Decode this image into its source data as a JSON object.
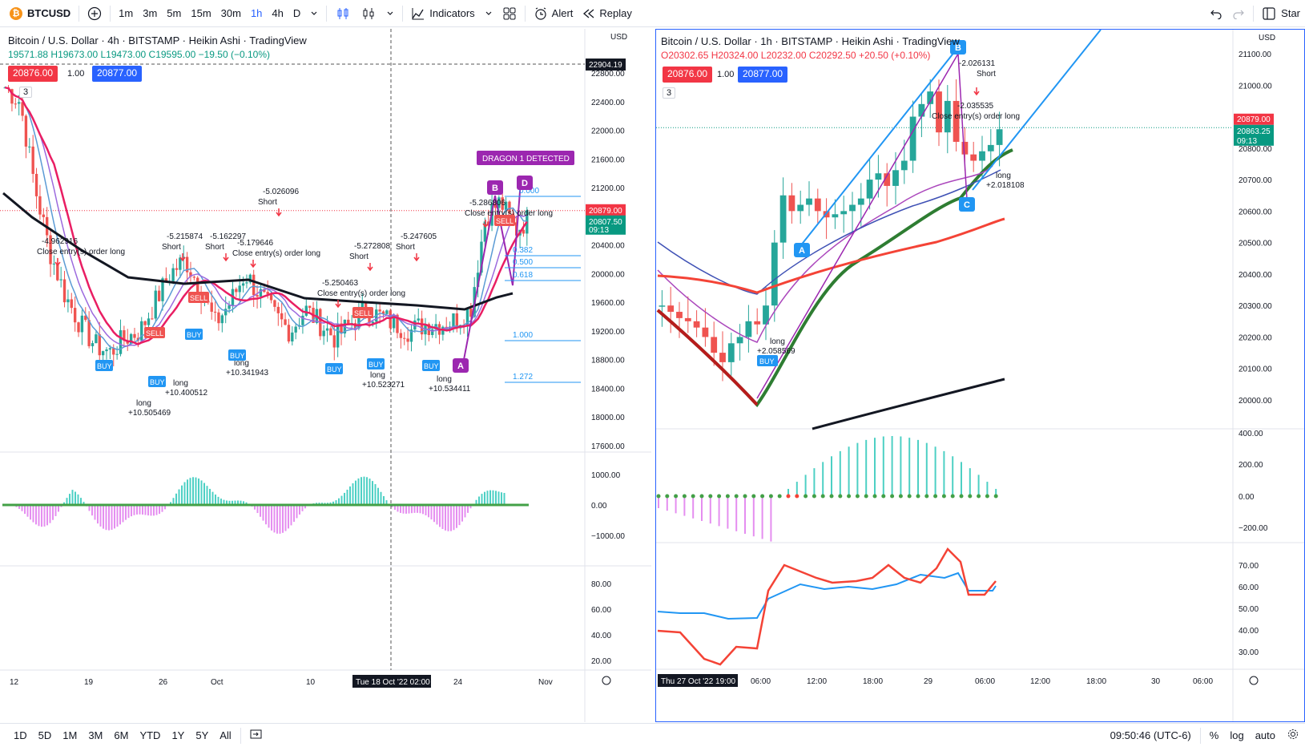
{
  "toolbar": {
    "symbol": "BTCUSD",
    "symbol_badge": "₿",
    "intervals": [
      "1m",
      "3m",
      "5m",
      "15m",
      "30m",
      "1h",
      "4h",
      "D"
    ],
    "active_interval": "1h",
    "indicators_label": "Indicators",
    "alert_label": "Alert",
    "replay_label": "Replay",
    "star_label": "Star"
  },
  "left": {
    "title": "Bitcoin / U.S. Dollar · 4h · BITSTAMP · Heikin Ashi · TradingView",
    "ohlc_o": "19571.88",
    "ohlc_h": "H19673.00",
    "ohlc_l": "L19473.00",
    "ohlc_c": "C19595.00",
    "ohlc_chg": "−19.50 (−0.10%)",
    "bid": "20876.00",
    "qty": "1.00",
    "ask": "20877.00",
    "ind_count": "3",
    "currency": "USD",
    "crosshair_price": "22904.19",
    "current_price": "20879.00",
    "current_price2": "20807.50",
    "countdown": "09:13",
    "date_marker": "Tue 18 Oct '22   02:00",
    "price_ticks": [
      "22800.00",
      "22400.00",
      "22000.00",
      "21600.00",
      "21200.00",
      "20800.00",
      "20400.00",
      "20000.00",
      "19600.00",
      "19200.00",
      "18800.00",
      "18400.00",
      "18000.00",
      "17600.00"
    ],
    "osc_ticks": [
      "1000.00",
      "0.00",
      "−1000.00"
    ],
    "rsi_ticks": [
      "80.00",
      "60.00",
      "40.00",
      "20.00"
    ],
    "x_ticks": [
      "12",
      "19",
      "26",
      "Oct",
      "10",
      "24",
      "Nov"
    ],
    "fib_labels": [
      "0.382",
      "0.500",
      "0.618",
      "1.000",
      "1.272",
      "0.000"
    ],
    "pattern_label": "DRAGON 1 DETECTED",
    "points": [
      "A",
      "B",
      "D"
    ],
    "annotations": [
      {
        "t": "-4.962916",
        "s": "Close entry(s) order long"
      },
      {
        "t": "-5.215874",
        "s": "Short"
      },
      {
        "t": "-5.162297",
        "s": "Short"
      },
      {
        "t": "-5.026096",
        "s": "Short"
      },
      {
        "t": "-5.179646",
        "s": "Close entry(s) order long"
      },
      {
        "t": "-5.272808",
        "s": "Short"
      },
      {
        "t": "-5.247605",
        "s": "Short"
      },
      {
        "t": "-5.250463",
        "s": "Close entry(s) order long"
      },
      {
        "t": "-5.286806",
        "s": "Close entry(s) order long"
      }
    ],
    "long_notes": [
      "long +10.341943",
      "long +10.523271",
      "long +10.534411",
      "long +10.400512",
      "long +10.505469"
    ]
  },
  "right": {
    "title": "Bitcoin / U.S. Dollar · 1h · BITSTAMP · Heikin Ashi · TradingView",
    "ohlc_o": "O20302.65",
    "ohlc_h": "H20324.00",
    "ohlc_l": "L20232.00",
    "ohlc_c": "C20292.50",
    "ohlc_chg": "+20.50 (+0.10%)",
    "bid": "20876.00",
    "qty": "1.00",
    "ask": "20877.00",
    "ind_count": "3",
    "currency": "USD",
    "current_price": "20879.00",
    "current_price2": "20863.25",
    "countdown": "09:13",
    "date_marker": "Thu 27 Oct '22   19:00",
    "price_ticks": [
      "21100.00",
      "21000.00",
      "20900.00",
      "20800.00",
      "20700.00",
      "20600.00",
      "20500.00",
      "20400.00",
      "20300.00",
      "20200.00",
      "20100.00",
      "20000.00"
    ],
    "osc_ticks": [
      "400.00",
      "200.00",
      "0.00",
      "−200.00"
    ],
    "rsi_ticks": [
      "70.00",
      "60.00",
      "50.00",
      "40.00",
      "30.00"
    ],
    "x_ticks": [
      "06:00",
      "12:00",
      "18:00",
      "29",
      "06:00",
      "12:00",
      "18:00",
      "30",
      "06:00"
    ],
    "points": [
      "A",
      "C",
      "B"
    ],
    "short_label": "-2.026131",
    "short_text": "Short",
    "close_label": "-2.035535",
    "close_text": "Close entry(s) order long",
    "long_label": "long",
    "long_value": "+2.018108",
    "buy_long": "long",
    "buy_value": "+2.058569",
    "buy_label": "BUY"
  },
  "bottom": {
    "ranges": [
      "1D",
      "5D",
      "1M",
      "3M",
      "6M",
      "YTD",
      "1Y",
      "5Y",
      "All"
    ],
    "time": "09:50:46 (UTC-6)",
    "percent": "%",
    "log": "log",
    "auto": "auto"
  },
  "colors": {
    "accent": "#2962ff",
    "up": "#089981",
    "down": "#f23645"
  }
}
